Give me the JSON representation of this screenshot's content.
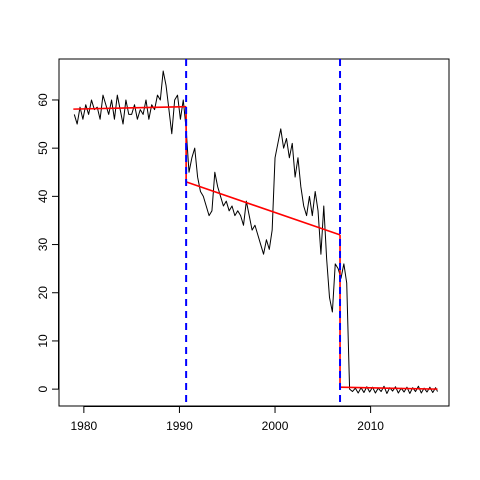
{
  "chart_data": {
    "type": "line",
    "xlim": [
      1977.4,
      2018.2
    ],
    "ylim": [
      -3.5,
      68.5
    ],
    "x_ticks": [
      1980,
      1990,
      2000,
      2010
    ],
    "y_ticks": [
      0,
      10,
      20,
      30,
      40,
      50,
      60
    ],
    "grid": false,
    "legend": "none",
    "colors": {
      "series": "#000000",
      "fit": "#ff0000",
      "breaks": "#0000ff"
    },
    "series": [
      {
        "style": "black-thin-line",
        "x": [
          1979.0,
          1979.3,
          1979.6,
          1979.9,
          1980.2,
          1980.5,
          1980.8,
          1981.1,
          1981.4,
          1981.7,
          1982.0,
          1982.3,
          1982.6,
          1982.9,
          1983.2,
          1983.5,
          1983.8,
          1984.1,
          1984.4,
          1984.7,
          1985.0,
          1985.3,
          1985.6,
          1985.9,
          1986.2,
          1986.5,
          1986.8,
          1987.1,
          1987.4,
          1987.7,
          1988.0,
          1988.3,
          1988.6,
          1988.9,
          1989.2,
          1989.5,
          1989.8,
          1990.1,
          1990.4,
          1990.7,
          1991.0,
          1991.3,
          1991.6,
          1991.9,
          1992.2,
          1992.5,
          1992.8,
          1993.1,
          1993.4,
          1993.7,
          1994.0,
          1994.3,
          1994.6,
          1994.9,
          1995.2,
          1995.5,
          1995.8,
          1996.1,
          1996.4,
          1996.7,
          1997.0,
          1997.3,
          1997.6,
          1997.9,
          1998.2,
          1998.5,
          1998.8,
          1999.1,
          1999.4,
          1999.7,
          2000.0,
          2000.3,
          2000.6,
          2000.9,
          2001.2,
          2001.5,
          2001.8,
          2002.1,
          2002.4,
          2002.7,
          2003.0,
          2003.3,
          2003.6,
          2003.9,
          2004.2,
          2004.5,
          2004.8,
          2005.1,
          2005.4,
          2005.7,
          2006.0,
          2006.3,
          2006.6,
          2006.9,
          2007.2,
          2007.5,
          2007.8,
          2008.1,
          2008.4,
          2008.7,
          2009.0,
          2009.3,
          2009.6,
          2009.9,
          2010.2,
          2010.5,
          2010.8,
          2011.1,
          2011.4,
          2011.7,
          2012.0,
          2012.3,
          2012.6,
          2012.9,
          2013.2,
          2013.5,
          2013.8,
          2014.1,
          2014.4,
          2014.7,
          2015.0,
          2015.3,
          2015.6,
          2015.9,
          2016.2,
          2016.5,
          2016.8,
          2017.0
        ],
        "y": [
          57,
          55,
          58.5,
          56,
          59,
          57,
          60,
          58,
          58.5,
          56,
          61,
          59,
          57,
          60,
          56,
          61,
          58,
          55,
          60,
          57,
          57,
          59,
          56,
          58,
          57,
          60,
          56,
          59,
          58,
          61,
          60,
          66,
          63,
          58,
          53,
          60,
          61,
          56,
          60,
          54,
          45,
          48,
          50,
          44,
          41,
          40,
          38,
          36,
          37,
          45,
          42,
          40,
          38,
          39,
          37,
          38,
          36,
          37,
          36,
          34,
          39,
          36,
          33,
          34,
          32,
          30,
          28,
          31,
          29,
          33,
          48,
          51,
          54,
          50,
          52,
          48,
          51,
          44,
          48,
          42,
          38,
          36,
          40,
          36,
          41,
          37,
          28,
          38,
          27,
          19,
          16,
          26,
          25,
          23,
          26,
          22,
          0,
          -0.5,
          0.2,
          -0.8,
          0.3,
          -0.7,
          0.5,
          -0.6,
          0.4,
          -0.8,
          0.2,
          -0.5,
          0.6,
          -0.9,
          0.3,
          -0.4,
          0.5,
          -0.8,
          0.2,
          -0.6,
          0.4,
          -0.9,
          0.3,
          -0.5,
          0.6,
          -0.8,
          0.2,
          -0.6,
          0.4,
          -0.7,
          0.3,
          -0.5
        ]
      },
      {
        "style": "red-fit-segment",
        "x": [
          1978.9,
          1990.7
        ],
        "y": [
          58.1,
          58.6
        ]
      },
      {
        "style": "red-fit-segment",
        "x": [
          1990.7,
          2006.8
        ],
        "y": [
          43.0,
          32.0
        ]
      },
      {
        "style": "red-fit-segment",
        "x": [
          2006.8,
          2017.0
        ],
        "y": [
          0.4,
          0.0
        ]
      }
    ],
    "breakpoints": [
      1990.7,
      2006.8
    ]
  }
}
